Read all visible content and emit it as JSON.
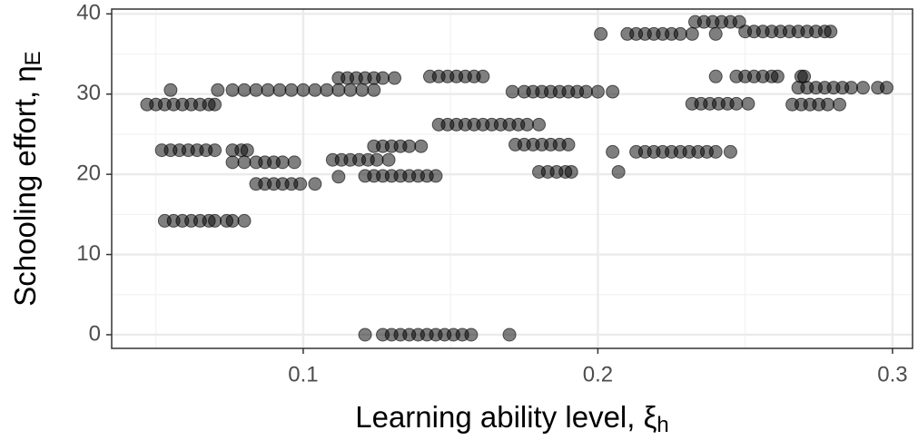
{
  "chart_data": {
    "type": "scatter",
    "x_label": "Learning ability level, ξ",
    "x_label_sub": "h",
    "y_label": "Schooling effort, η",
    "y_label_sub": "E",
    "xlim": [
      0.035,
      0.3068
    ],
    "ylim": [
      -1.7,
      40.6
    ],
    "xticks": [
      0.1,
      0.2,
      0.3
    ],
    "yticks": [
      0,
      10,
      20,
      30,
      40
    ],
    "x_minor_grid": [
      0.05,
      0.15,
      0.25
    ],
    "y_minor_grid": [
      5,
      15,
      25,
      35
    ],
    "grid": true,
    "color": "#000000",
    "x": [
      0.047,
      0.05,
      0.053,
      0.056,
      0.059,
      0.062,
      0.065,
      0.068,
      0.07,
      0.055,
      0.071,
      0.076,
      0.052,
      0.055,
      0.058,
      0.061,
      0.064,
      0.067,
      0.07,
      0.076,
      0.079,
      0.081,
      0.076,
      0.08,
      0.053,
      0.056,
      0.059,
      0.062,
      0.065,
      0.068,
      0.07,
      0.074,
      0.076,
      0.08,
      0.08,
      0.084,
      0.088,
      0.092,
      0.096,
      0.1,
      0.104,
      0.108,
      0.112,
      0.116,
      0.12,
      0.124,
      0.084,
      0.087,
      0.09,
      0.093,
      0.097,
      0.084,
      0.087,
      0.09,
      0.093,
      0.096,
      0.099,
      0.104,
      0.11,
      0.113,
      0.116,
      0.119,
      0.122,
      0.125,
      0.129,
      0.112,
      0.112,
      0.115,
      0.118,
      0.121,
      0.124,
      0.127,
      0.131,
      0.124,
      0.127,
      0.13,
      0.133,
      0.136,
      0.14,
      0.121,
      0.124,
      0.127,
      0.13,
      0.133,
      0.136,
      0.139,
      0.142,
      0.145,
      0.121,
      0.127,
      0.13,
      0.133,
      0.136,
      0.139,
      0.142,
      0.145,
      0.148,
      0.151,
      0.154,
      0.157,
      0.17,
      0.143,
      0.146,
      0.149,
      0.152,
      0.155,
      0.158,
      0.161,
      0.146,
      0.149,
      0.152,
      0.155,
      0.158,
      0.161,
      0.164,
      0.167,
      0.17,
      0.173,
      0.176,
      0.18,
      0.171,
      0.175,
      0.178,
      0.181,
      0.184,
      0.187,
      0.19,
      0.193,
      0.196,
      0.2,
      0.205,
      0.172,
      0.175,
      0.178,
      0.181,
      0.184,
      0.187,
      0.19,
      0.18,
      0.183,
      0.186,
      0.189,
      0.191,
      0.207,
      0.205,
      0.213,
      0.216,
      0.219,
      0.222,
      0.225,
      0.228,
      0.231,
      0.234,
      0.237,
      0.24,
      0.245,
      0.201,
      0.21,
      0.213,
      0.216,
      0.219,
      0.222,
      0.225,
      0.228,
      0.232,
      0.24,
      0.233,
      0.236,
      0.239,
      0.242,
      0.245,
      0.248,
      0.232,
      0.235,
      0.238,
      0.241,
      0.244,
      0.247,
      0.251,
      0.24,
      0.247,
      0.25,
      0.253,
      0.256,
      0.259,
      0.261,
      0.269,
      0.25,
      0.253,
      0.256,
      0.259,
      0.262,
      0.265,
      0.268,
      0.271,
      0.274,
      0.277,
      0.279,
      0.268,
      0.271,
      0.274,
      0.277,
      0.28,
      0.283,
      0.286,
      0.29,
      0.295,
      0.298,
      0.266,
      0.269,
      0.272,
      0.275,
      0.278,
      0.282,
      0.27
    ],
    "y": [
      28.7,
      28.7,
      28.7,
      28.7,
      28.7,
      28.7,
      28.7,
      28.7,
      28.7,
      30.5,
      30.5,
      30.5,
      23,
      23,
      23,
      23,
      23,
      23,
      23,
      23,
      23,
      23,
      21.5,
      21.5,
      14.2,
      14.2,
      14.2,
      14.2,
      14.2,
      14.2,
      14.2,
      14.2,
      14.2,
      14.2,
      30.5,
      30.5,
      30.5,
      30.5,
      30.5,
      30.5,
      30.5,
      30.5,
      30.5,
      30.5,
      30.5,
      30.5,
      21.5,
      21.5,
      21.5,
      21.5,
      21.5,
      18.8,
      18.8,
      18.8,
      18.8,
      18.8,
      18.8,
      18.8,
      21.8,
      21.8,
      21.8,
      21.8,
      21.8,
      21.8,
      21.8,
      19.7,
      32,
      32,
      32,
      32,
      32,
      32,
      32,
      23.5,
      23.5,
      23.5,
      23.5,
      23.5,
      23.5,
      19.8,
      19.8,
      19.8,
      19.8,
      19.8,
      19.8,
      19.8,
      19.8,
      19.8,
      0,
      0,
      0,
      0,
      0,
      0,
      0,
      0,
      0,
      0,
      0,
      0,
      0,
      32.2,
      32.2,
      32.2,
      32.2,
      32.2,
      32.2,
      32.2,
      26.2,
      26.2,
      26.2,
      26.2,
      26.2,
      26.2,
      26.2,
      26.2,
      26.2,
      26.2,
      26.2,
      26.2,
      30.3,
      30.3,
      30.3,
      30.3,
      30.3,
      30.3,
      30.3,
      30.3,
      30.3,
      30.3,
      30.3,
      23.7,
      23.7,
      23.7,
      23.7,
      23.7,
      23.7,
      23.7,
      20.3,
      20.3,
      20.3,
      20.3,
      20.3,
      20.3,
      22.8,
      22.8,
      22.8,
      22.8,
      22.8,
      22.8,
      22.8,
      22.8,
      22.8,
      22.8,
      22.8,
      22.8,
      37.5,
      37.5,
      37.5,
      37.5,
      37.5,
      37.5,
      37.5,
      37.5,
      37.5,
      37.5,
      39,
      39,
      39,
      39,
      39,
      39,
      28.8,
      28.8,
      28.8,
      28.8,
      28.8,
      28.8,
      28.8,
      32.2,
      32.2,
      32.2,
      32.2,
      32.2,
      32.2,
      32.2,
      32.2,
      37.8,
      37.8,
      37.8,
      37.8,
      37.8,
      37.8,
      37.8,
      37.8,
      37.8,
      37.8,
      37.8,
      30.8,
      30.8,
      30.8,
      30.8,
      30.8,
      30.8,
      30.8,
      30.8,
      30.8,
      30.8,
      28.7,
      28.7,
      28.7,
      28.7,
      28.7,
      28.7,
      32.2
    ]
  }
}
